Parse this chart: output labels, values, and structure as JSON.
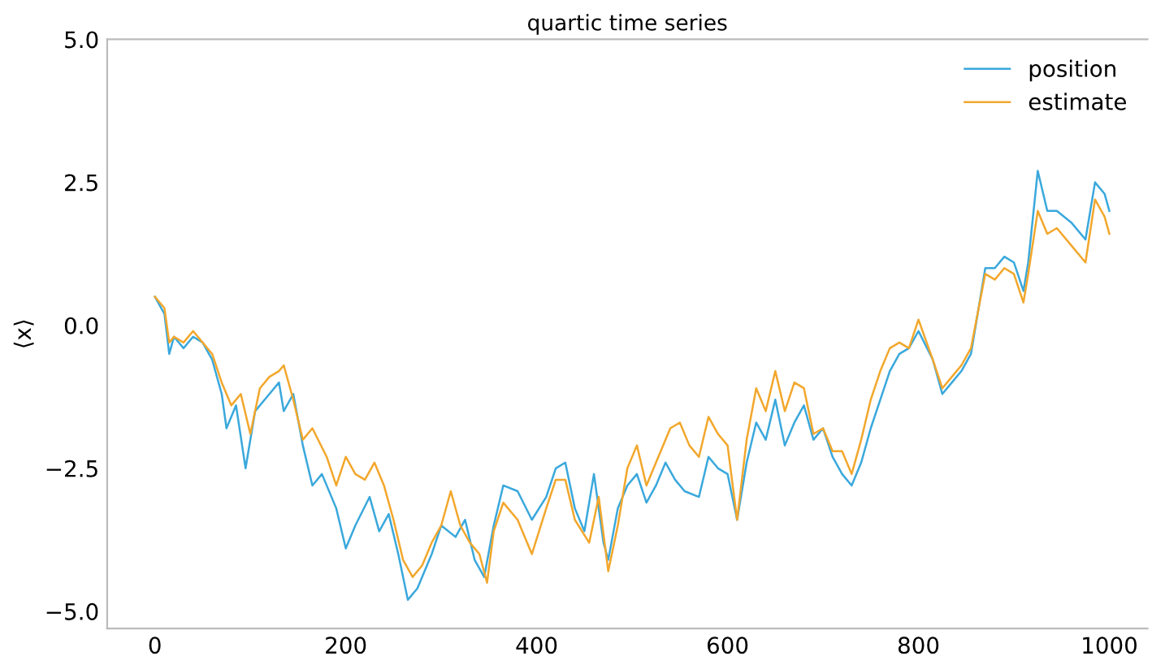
{
  "chart_data": {
    "type": "line",
    "title": "quartic time series",
    "ylabel": "⟨x⟩",
    "xlim": [
      -50,
      1040
    ],
    "ylim": [
      -5.3,
      5.0
    ],
    "xticks": [
      0,
      200,
      400,
      600,
      800,
      1000
    ],
    "yticks": [
      {
        "value": -5,
        "label": "−5.0"
      },
      {
        "value": -2.5,
        "label": "−2.5"
      },
      {
        "value": 0,
        "label": "0.0"
      },
      {
        "value": 2.5,
        "label": "2.5"
      },
      {
        "value": 5,
        "label": "5.0"
      }
    ],
    "grid": false,
    "legend": "top right",
    "marker": "none",
    "line_style": "solid",
    "series": [
      {
        "name": "position",
        "color": "#3aa8dc",
        "x": [
          0,
          10,
          15,
          20,
          30,
          40,
          50,
          60,
          70,
          75,
          85,
          95,
          105,
          120,
          130,
          135,
          145,
          155,
          165,
          175,
          190,
          200,
          210,
          225,
          235,
          245,
          255,
          265,
          275,
          290,
          300,
          315,
          325,
          335,
          345,
          355,
          365,
          380,
          395,
          410,
          420,
          430,
          440,
          450,
          460,
          470,
          475,
          485,
          495,
          505,
          515,
          525,
          535,
          545,
          555,
          570,
          580,
          590,
          600,
          610,
          620,
          630,
          640,
          650,
          660,
          670,
          680,
          690,
          700,
          710,
          720,
          730,
          740,
          750,
          760,
          770,
          780,
          790,
          800,
          815,
          825,
          835,
          845,
          855,
          870,
          880,
          890,
          900,
          910,
          915,
          925,
          935,
          945,
          960,
          975,
          985,
          995,
          1000
        ],
        "values": [
          0.5,
          0.2,
          -0.5,
          -0.2,
          -0.4,
          -0.2,
          -0.3,
          -0.6,
          -1.2,
          -1.8,
          -1.4,
          -2.5,
          -1.5,
          -1.2,
          -1.0,
          -1.5,
          -1.2,
          -2.1,
          -2.8,
          -2.6,
          -3.2,
          -3.9,
          -3.5,
          -3.0,
          -3.6,
          -3.3,
          -4.0,
          -4.8,
          -4.6,
          -4.0,
          -3.5,
          -3.7,
          -3.4,
          -4.1,
          -4.4,
          -3.5,
          -2.8,
          -2.9,
          -3.4,
          -3.0,
          -2.5,
          -2.4,
          -3.2,
          -3.6,
          -2.6,
          -3.8,
          -4.1,
          -3.2,
          -2.8,
          -2.6,
          -3.1,
          -2.8,
          -2.4,
          -2.7,
          -2.9,
          -3.0,
          -2.3,
          -2.5,
          -2.6,
          -3.4,
          -2.4,
          -1.7,
          -2.0,
          -1.3,
          -2.1,
          -1.7,
          -1.4,
          -2.0,
          -1.8,
          -2.3,
          -2.6,
          -2.8,
          -2.4,
          -1.8,
          -1.3,
          -0.8,
          -0.5,
          -0.4,
          -0.1,
          -0.6,
          -1.2,
          -1.0,
          -0.8,
          -0.5,
          1.0,
          1.0,
          1.2,
          1.1,
          0.6,
          1.1,
          2.7,
          2.0,
          2.0,
          1.8,
          1.5,
          2.5,
          2.3,
          2.0
        ]
      },
      {
        "name": "estimate",
        "color": "#f2a72c",
        "x": [
          0,
          10,
          15,
          20,
          30,
          40,
          50,
          60,
          70,
          80,
          90,
          100,
          110,
          120,
          130,
          135,
          145,
          155,
          165,
          180,
          190,
          200,
          210,
          220,
          230,
          240,
          250,
          260,
          270,
          280,
          290,
          300,
          310,
          320,
          330,
          340,
          348,
          355,
          365,
          380,
          395,
          410,
          420,
          430,
          440,
          455,
          465,
          475,
          485,
          495,
          505,
          515,
          525,
          540,
          550,
          560,
          570,
          580,
          590,
          600,
          610,
          620,
          630,
          640,
          650,
          660,
          670,
          680,
          690,
          700,
          710,
          720,
          730,
          740,
          750,
          760,
          770,
          780,
          790,
          800,
          815,
          825,
          835,
          845,
          855,
          870,
          880,
          890,
          900,
          910,
          915,
          925,
          935,
          945,
          960,
          975,
          985,
          995,
          1000
        ],
        "values": [
          0.5,
          0.3,
          -0.3,
          -0.2,
          -0.3,
          -0.1,
          -0.3,
          -0.5,
          -1.0,
          -1.4,
          -1.2,
          -1.9,
          -1.1,
          -0.9,
          -0.8,
          -0.7,
          -1.3,
          -2.0,
          -1.8,
          -2.3,
          -2.8,
          -2.3,
          -2.6,
          -2.7,
          -2.4,
          -2.8,
          -3.4,
          -4.1,
          -4.4,
          -4.2,
          -3.8,
          -3.5,
          -2.9,
          -3.5,
          -3.8,
          -4.0,
          -4.5,
          -3.6,
          -3.1,
          -3.4,
          -4.0,
          -3.2,
          -2.7,
          -2.7,
          -3.4,
          -3.8,
          -3.0,
          -4.3,
          -3.5,
          -2.5,
          -2.1,
          -2.8,
          -2.4,
          -1.8,
          -1.7,
          -2.1,
          -2.3,
          -1.6,
          -1.9,
          -2.1,
          -3.4,
          -2.0,
          -1.1,
          -1.5,
          -0.8,
          -1.5,
          -1.0,
          -1.1,
          -1.9,
          -1.8,
          -2.2,
          -2.2,
          -2.6,
          -2.0,
          -1.3,
          -0.8,
          -0.4,
          -0.3,
          -0.4,
          0.1,
          -0.6,
          -1.1,
          -0.9,
          -0.7,
          -0.4,
          0.9,
          0.8,
          1.0,
          0.9,
          0.4,
          0.9,
          2.0,
          1.6,
          1.7,
          1.4,
          1.1,
          2.2,
          1.9,
          1.6
        ]
      }
    ]
  }
}
